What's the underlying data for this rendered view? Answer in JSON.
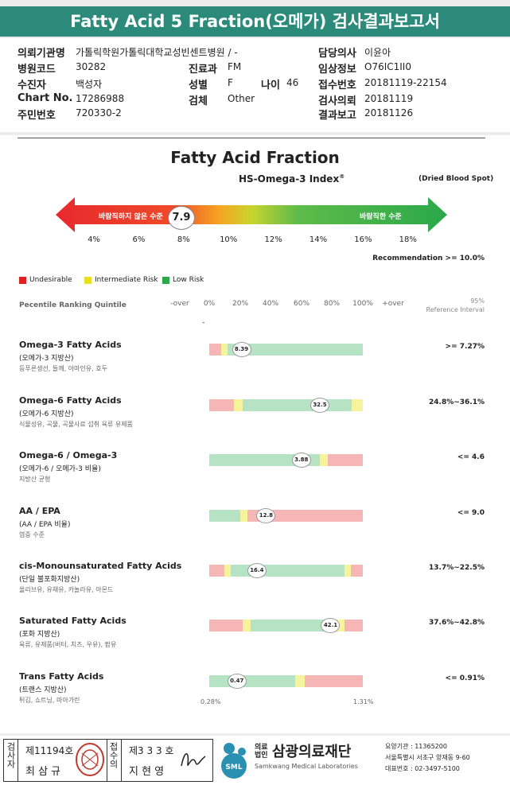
{
  "title": "Fatty Acid 5 Fraction(오메가) 검사결과보고서",
  "info": {
    "institution_label": "의뢰기관명",
    "institution": "가톨릭학원가톨릭대학교성빈센트병원 / -",
    "code_label": "병원코드",
    "code": "30282",
    "dept_label": "진료과",
    "dept": "FM",
    "patient_label": "수진자",
    "patient": "백성자",
    "sex_label": "성별",
    "sex": "F",
    "age_label": "나이",
    "age": "46",
    "chart_label": "Chart No.",
    "chart": "17286988",
    "specimen_label": "검체",
    "specimen": "Other",
    "rrn_label": "주민번호",
    "rrn": "720330-2",
    "doctor_label": "담당의사",
    "doctor": "이윤아",
    "clinical_label": "임상정보",
    "clinical": "O76IC1II0",
    "receipt_label": "접수번호",
    "receipt": "20181119-22154",
    "request_label": "검사의뢰",
    "request": "20181119",
    "report_label": "결과보고",
    "report": "20181126"
  },
  "main": {
    "title": "Fatty Acid Fraction",
    "index_title": "HS-Omega-3 Index",
    "index_sup": "®",
    "dried": "(Dried Blood Spot)",
    "arrow_left": "바람직하지 않은 수준",
    "arrow_right": "바람직한 수준",
    "index_value": "7.9",
    "index_numeric": 7.9,
    "ticks": [
      "4%",
      "6%",
      "8%",
      "10%",
      "12%",
      "14%",
      "16%",
      "18%"
    ],
    "recommendation": "Recommendation  >= 10.0%",
    "legend": [
      {
        "label": "Undesirable",
        "color": "#e02020"
      },
      {
        "label": "Intermediate Risk",
        "color": "#e6e020"
      },
      {
        "label": "Low Risk",
        "color": "#2aa84a"
      }
    ],
    "quintile_title": "Pecentile Ranking Quintile",
    "quintile_heads": [
      "-over",
      "0%",
      "20%",
      "40%",
      "60%",
      "80%",
      "100%",
      "+over"
    ],
    "ref_head_1": "95%",
    "ref_head_2": "Reference Interval",
    "dash": "-"
  },
  "colors": {
    "red": "#f6b6b6",
    "yellow": "#f7f29c",
    "green": "#b5e3c4"
  },
  "rows": [
    {
      "name": "Omega-3 Fatty Acids",
      "kor": "(오메가-3 지방산)",
      "desc": "등푸른생선, 들깨, 아마인유, 호두",
      "ref": ">= 7.27%",
      "value": "8.39",
      "value_pct": 21,
      "segments": [
        [
          "red",
          8
        ],
        [
          "yellow",
          4
        ],
        [
          "green",
          88
        ]
      ]
    },
    {
      "name": "Omega-6 Fatty Acids",
      "kor": "(오메가-6 지방산)",
      "desc": "식물성유, 곡물, 곡물사료 섭취 육류 유제품",
      "ref": "24.8%~36.1%",
      "value": "32.5",
      "value_pct": 72,
      "segments": [
        [
          "red",
          16
        ],
        [
          "yellow",
          6
        ],
        [
          "green",
          71
        ],
        [
          "yellow",
          7
        ]
      ]
    },
    {
      "name": "Omega-6 / Omega-3",
      "kor": "(오메가-6 / 오메가-3 비율)",
      "desc": "지방산 균형",
      "ref": "<= 4.6",
      "value": "3.88",
      "value_pct": 60,
      "segments": [
        [
          "green",
          72
        ],
        [
          "yellow",
          5
        ],
        [
          "red",
          23
        ]
      ]
    },
    {
      "name": "AA / EPA",
      "kor": "(AA / EPA 비율)",
      "desc": "염증 수준",
      "ref": "<= 9.0",
      "value": "12.8",
      "value_pct": 37,
      "segments": [
        [
          "green",
          20
        ],
        [
          "yellow",
          5
        ],
        [
          "red",
          75
        ]
      ]
    },
    {
      "name": "cis-Monounsaturated Fatty Acids",
      "kor": "(단일 불포화지방산)",
      "desc": "올리브유, 유채유, 카놀라유, 아몬드",
      "ref": "13.7%~22.5%",
      "value": "16.4",
      "value_pct": 31,
      "segments": [
        [
          "red",
          10
        ],
        [
          "yellow",
          4
        ],
        [
          "green",
          74
        ],
        [
          "yellow",
          4
        ],
        [
          "red",
          8
        ]
      ]
    },
    {
      "name": "Saturated Fatty Acids",
      "kor": "(포화 지방산)",
      "desc": "육류, 유제품(버터, 치즈, 우유), 팜유",
      "ref": "37.6%~42.8%",
      "value": "42.1",
      "value_pct": 79,
      "segments": [
        [
          "red",
          22
        ],
        [
          "yellow",
          5
        ],
        [
          "green",
          56
        ],
        [
          "yellow",
          5
        ],
        [
          "red",
          12
        ]
      ]
    },
    {
      "name": "Trans Fatty Acids",
      "kor": "(트랜스 지방산)",
      "desc": "튀김, 쇼트닝, 마아가린",
      "ref": "<= 0.91%",
      "value": "0.47",
      "value_pct": 18,
      "segments": [
        [
          "green",
          56
        ],
        [
          "yellow",
          6
        ],
        [
          "red",
          38
        ]
      ],
      "low": "0.28%",
      "high": "1.31%"
    }
  ],
  "footer": {
    "v_label_1": "검사자",
    "no1": "제11194호",
    "name1": "최 삼 규",
    "v_label_2": "접수의",
    "no2": "제3 3 3 호",
    "name2": "지 현 영",
    "org_prefix_1": "의료",
    "org_prefix_2": "법인",
    "org": "삼광의료재단",
    "org_en": "Samkwang Medical Laboratories",
    "logo_text": "SML",
    "line1": "요양기관 : 11365200",
    "line2": "서울특별시 서초구 양재동 9-60",
    "line3": "대표번호 : 02-3497-5100"
  }
}
